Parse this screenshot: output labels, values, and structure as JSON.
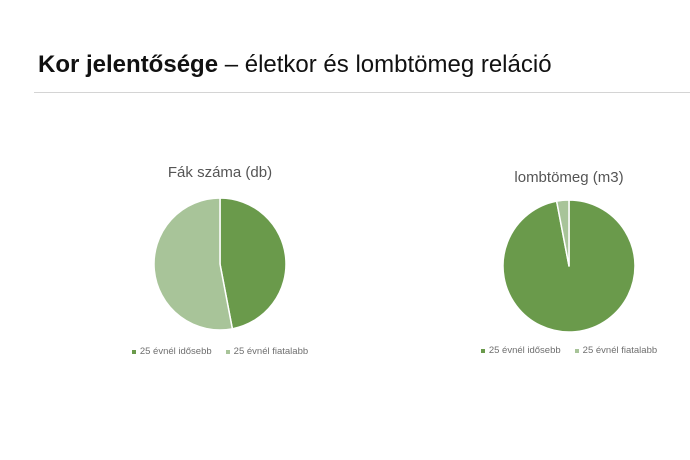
{
  "slide": {
    "title_bold": "Kor jelentősége",
    "title_rest": " – életkor és lombtömeg reláció"
  },
  "colors": {
    "older": "#6a9a4b",
    "younger": "#a8c499"
  },
  "chart_data": [
    {
      "type": "pie",
      "title": "Fák száma (db)",
      "categories": [
        "25 évnél idősebb",
        "25 évnél fiatalabb"
      ],
      "values": [
        47,
        53
      ],
      "legend": "bottom",
      "start_angle": "12 o'clock",
      "direction": "clockwise"
    },
    {
      "type": "pie",
      "title": "lombtömeg (m3)",
      "categories": [
        "25 évnél idősebb",
        "25 évnél fiatalabb"
      ],
      "values": [
        97,
        3
      ],
      "legend": "bottom",
      "start_angle": "12 o'clock",
      "direction": "clockwise"
    }
  ]
}
